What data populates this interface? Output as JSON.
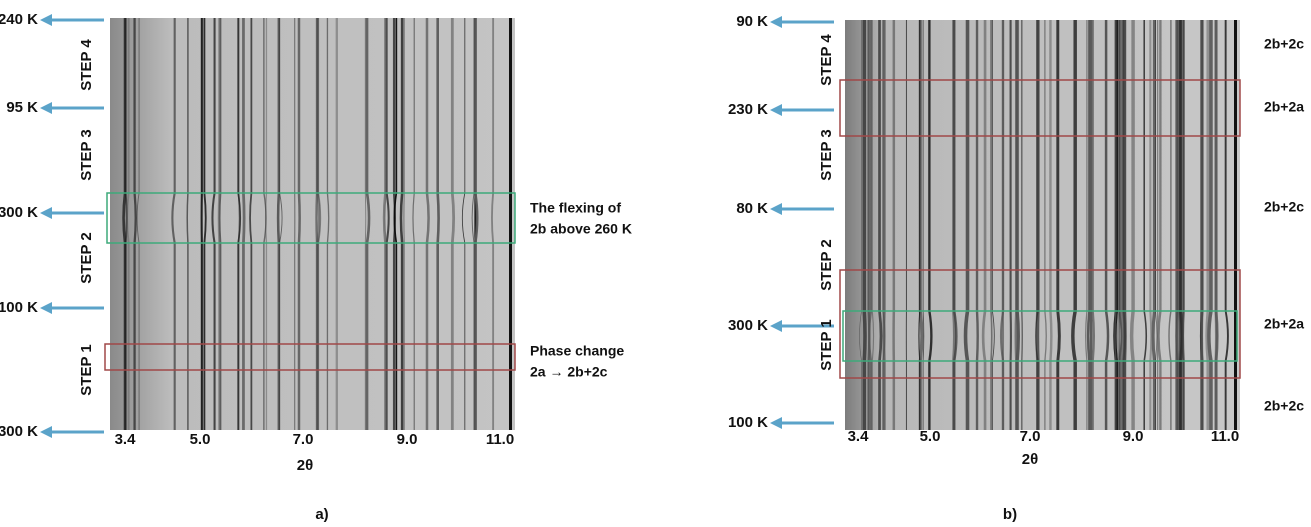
{
  "panels": [
    {
      "temperature_labels": [
        "240 K",
        "95 K",
        "300 K",
        "100 K",
        "300 K"
      ],
      "step_labels": [
        "STEP 4",
        "STEP 3",
        "STEP 2",
        "STEP 1"
      ],
      "x_tick_labels": [
        "3.4",
        "5.0",
        "7.0",
        "9.0",
        "11.0"
      ],
      "x_label": "2θ",
      "annotations": [
        [
          "The flexing of",
          "2b above 260 K"
        ],
        [
          "Phase change",
          "2a → 2b+2c"
        ]
      ],
      "caption": "a)"
    },
    {
      "temperature_labels": [
        "90 K",
        "230 K",
        "80 K",
        "300 K",
        "100 K"
      ],
      "step_labels": [
        "STEP 4",
        "STEP 3",
        "STEP 2",
        "STEP 1"
      ],
      "x_tick_labels": [
        "3.4",
        "5.0",
        "7.0",
        "9.0",
        "11.0"
      ],
      "x_label": "2θ",
      "phase_labels": [
        "2b+2c",
        "2b+2a",
        "2b+2c",
        "2b+2a",
        "2b+2c"
      ],
      "caption": "b)"
    }
  ]
}
